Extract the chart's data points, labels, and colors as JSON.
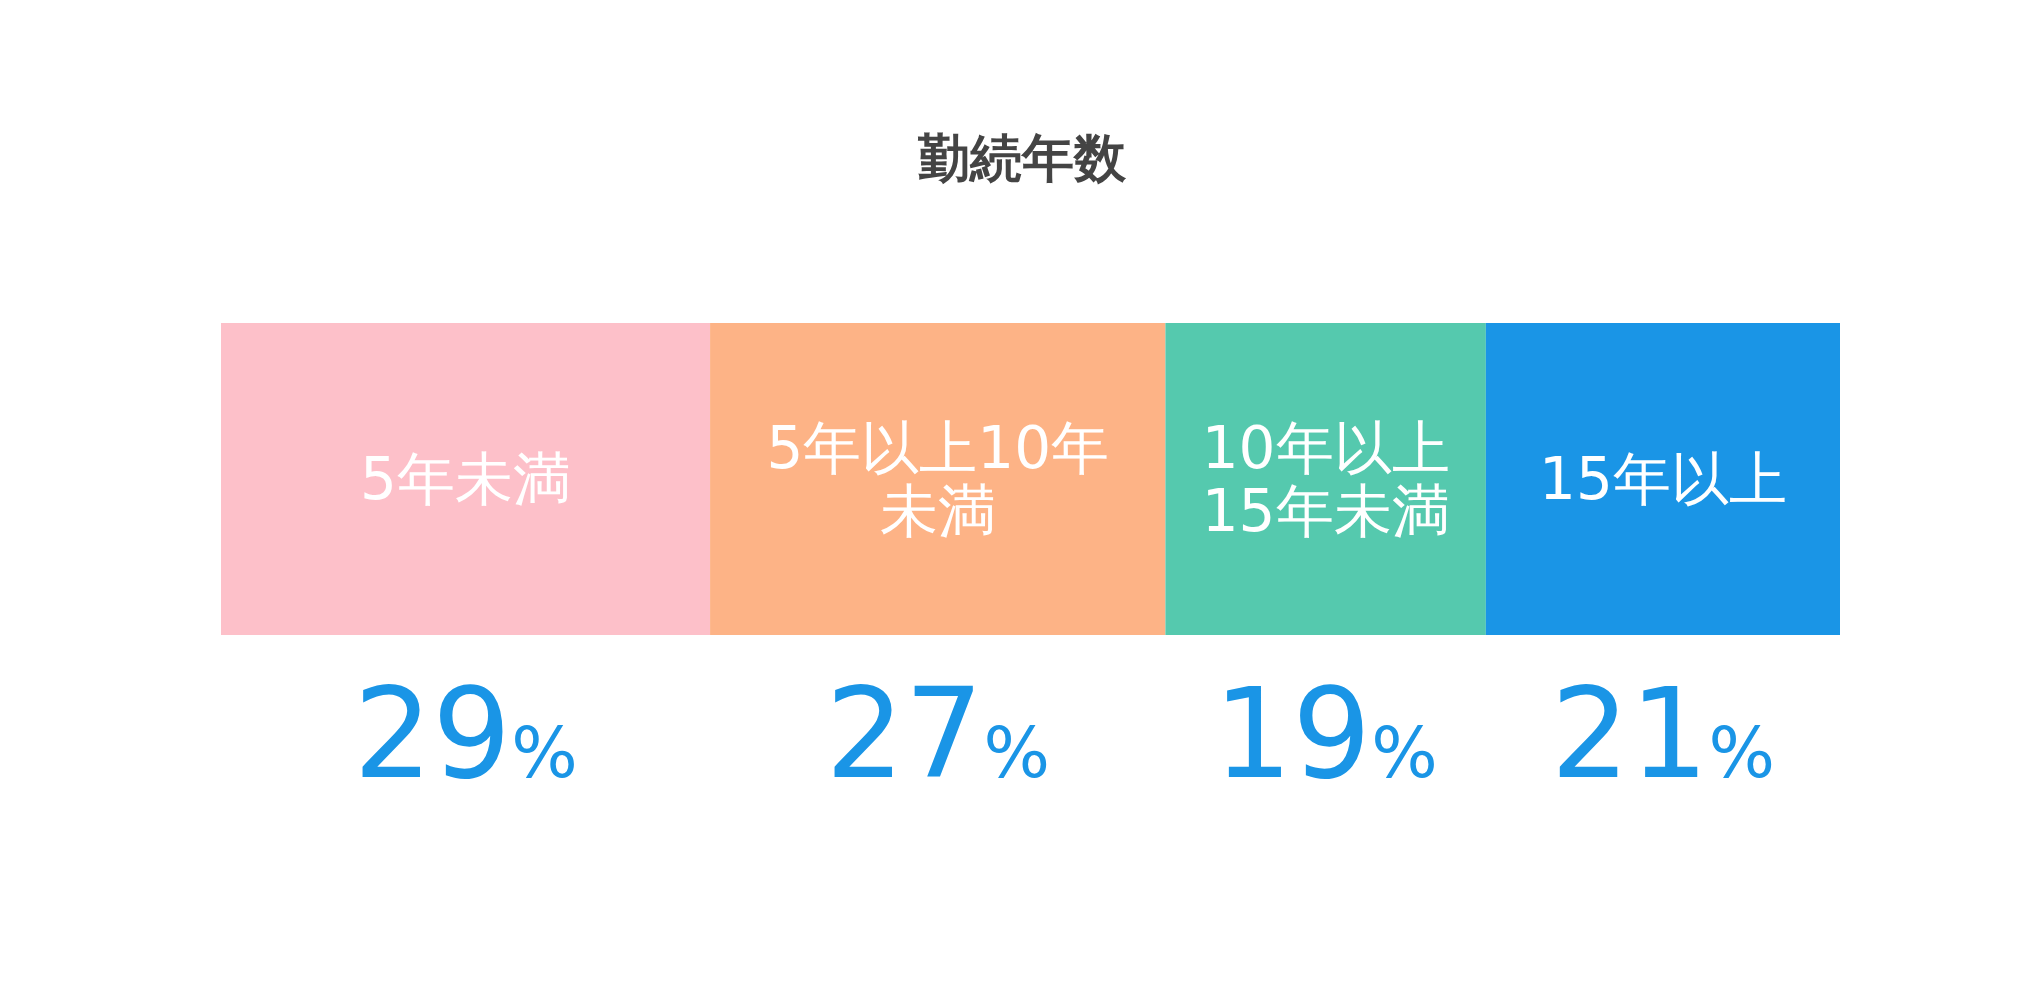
{
  "chart_data": {
    "type": "bar",
    "title": "勤続年数",
    "orientation": "horizontal",
    "stacked": true,
    "categories": [
      null
    ],
    "series": [
      {
        "name": "5年未満",
        "color": "#fdc0c9",
        "values": [
          29
        ],
        "value_labels": [
          "29%"
        ]
      },
      {
        "name": "5年以上10年未満",
        "color": "#fdb386",
        "values": [
          27
        ],
        "value_labels": [
          "27%"
        ]
      },
      {
        "name": "10年以上15年未満",
        "color": "#55c9ae",
        "values": [
          19
        ],
        "value_labels": [
          "19%"
        ]
      },
      {
        "name": "15年以上",
        "color": "#1a95e6",
        "values": [
          21
        ],
        "value_labels": [
          "21%"
        ]
      }
    ]
  }
}
